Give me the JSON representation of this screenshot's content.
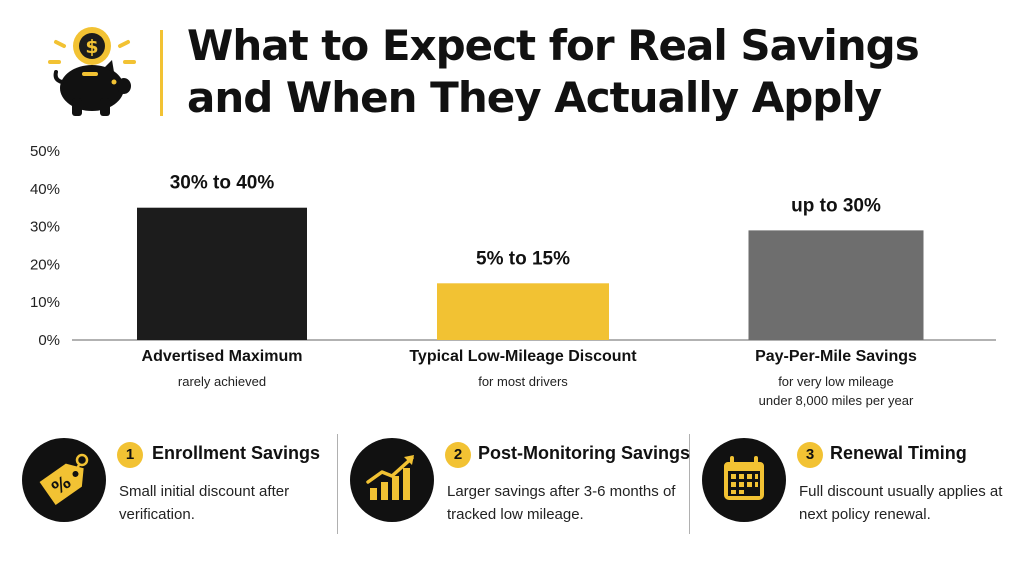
{
  "title": {
    "line1": "What to Expect for Real Savings",
    "line2": "and When They Actually Apply"
  },
  "logo": {
    "icon": "piggy-bank-dollar-icon",
    "symbol": "$"
  },
  "colors": {
    "black": "#1c1c1c",
    "yellow": "#f2c233",
    "gray": "#6e6e6e",
    "axis": "#999999"
  },
  "chart_data": {
    "type": "bar",
    "title": "",
    "xlabel": "",
    "ylabel": "",
    "ylim": [
      0,
      50
    ],
    "yticks": [
      0,
      10,
      20,
      30,
      40,
      50
    ],
    "ytick_labels": [
      "0%",
      "10%",
      "20%",
      "30%",
      "40%",
      "50%"
    ],
    "grid": false,
    "categories": [
      "Advertised Maximum",
      "Typical Low-Mileage Discount",
      "Pay-Per-Mile Savings"
    ],
    "subtitles": [
      "rarely achieved",
      "for most drivers",
      "for very low mileage\nunder 8,000 miles per year"
    ],
    "values": [
      35,
      15,
      29
    ],
    "data_labels": [
      "30% to 40%",
      "5% to 15%",
      "up to 30%"
    ],
    "bar_colors": [
      "#1c1c1c",
      "#f2c233",
      "#6e6e6e"
    ]
  },
  "steps": [
    {
      "number": "1",
      "title": "Enrollment Savings",
      "desc": "Small initial discount after verification.",
      "icon": "percent-tag-icon"
    },
    {
      "number": "2",
      "title": "Post-Monitoring Savings",
      "desc": "Larger savings after 3-6 months of tracked low mileage.",
      "icon": "growth-chart-icon"
    },
    {
      "number": "3",
      "title": "Renewal Timing",
      "desc": "Full discount usually applies at next policy renewal.",
      "icon": "calendar-icon"
    }
  ]
}
